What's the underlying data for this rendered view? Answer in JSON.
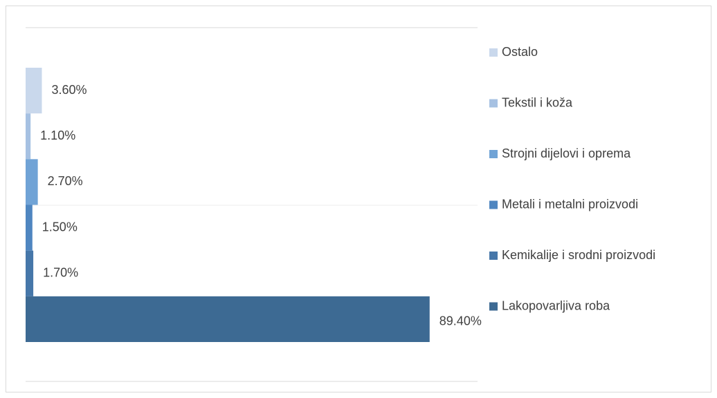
{
  "chart_data": {
    "type": "bar",
    "orientation": "horizontal",
    "categories": [
      "Ostalo",
      "Tekstil i koža",
      "Strojni dijelovi i oprema",
      "Metali i metalni proizvodi",
      "Kemikalije i srodni proizvodi",
      "Lakopovarljiva roba"
    ],
    "values": [
      3.6,
      1.1,
      2.7,
      1.5,
      1.7,
      89.4
    ],
    "value_labels": [
      "3.60%",
      "1.10%",
      "2.70%",
      "1.50%",
      "1.70%",
      "89.40%"
    ],
    "colors": [
      "#c9d8ec",
      "#a6c1e2",
      "#70a3d6",
      "#4f86c0",
      "#4677a9",
      "#3d6a93"
    ],
    "xlim": [
      0,
      100
    ],
    "legend": "right"
  }
}
